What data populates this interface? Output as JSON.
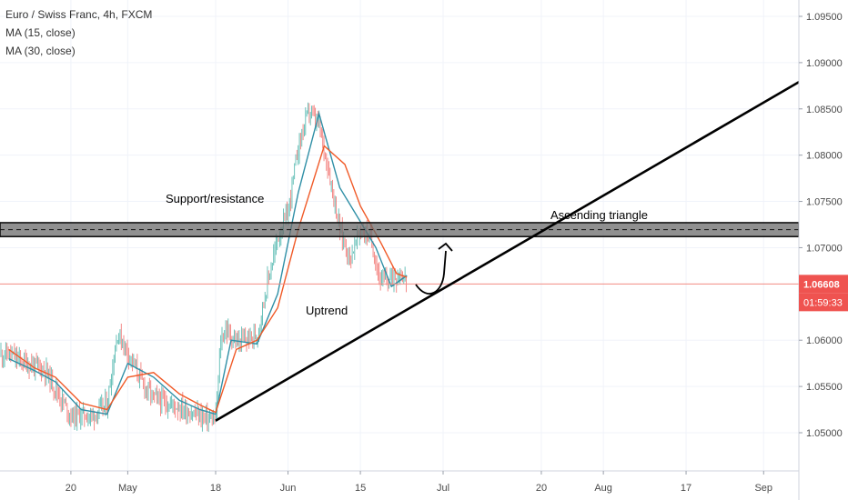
{
  "chart_data": {
    "type": "candlestick",
    "title": "Euro / Swiss Franc, 4h, FXCM",
    "indicators": [
      {
        "name": "MA (15, close)",
        "color": "#2f8fa6"
      },
      {
        "name": "MA (30, close)",
        "color": "#f05a28"
      }
    ],
    "ylim": [
      1.0468,
      1.0972
    ],
    "y_ticks": [
      "1.09500",
      "1.09000",
      "1.08500",
      "1.08000",
      "1.07500",
      "1.07000",
      "1.06000",
      "1.05500",
      "1.05000"
    ],
    "x_ticks": [
      "20",
      "May",
      "18",
      "Jun",
      "15",
      "Jul",
      "20",
      "Aug",
      "17",
      "Sep"
    ],
    "last_price": {
      "value": "1.06608",
      "countdown": "01:59:33"
    },
    "colors": {
      "up": "#26a69a",
      "down": "#ef5350",
      "price_line": "#f28b82",
      "band": "#6b6b6b"
    },
    "price_path": [
      [
        "Apr 08",
        1.0585
      ],
      [
        "Apr 10",
        1.0578
      ],
      [
        "Apr 13",
        1.0572
      ],
      [
        "Apr 15",
        1.0568
      ],
      [
        "Apr 17",
        1.0548
      ],
      [
        "Apr 20",
        1.0518
      ],
      [
        "Apr 22",
        1.052
      ],
      [
        "Apr 24",
        1.0518
      ],
      [
        "Apr 27",
        1.053
      ],
      [
        "Apr 29",
        1.0608
      ],
      [
        "May 01",
        1.0588
      ],
      [
        "May 04",
        1.0552
      ],
      [
        "May 06",
        1.0538
      ],
      [
        "May 08",
        1.0533
      ],
      [
        "May 11",
        1.0528
      ],
      [
        "May 13",
        1.0522
      ],
      [
        "May 15",
        1.0518
      ],
      [
        "May 18",
        1.0513
      ],
      [
        "May 19",
        1.06
      ],
      [
        "May 20",
        1.0612
      ],
      [
        "May 22",
        1.0597
      ],
      [
        "May 26",
        1.0605
      ],
      [
        "May 28",
        1.0662
      ],
      [
        "May 30",
        1.071
      ],
      [
        "Jun 01",
        1.0738
      ],
      [
        "Jun 03",
        1.081
      ],
      [
        "Jun 05",
        1.0848
      ],
      [
        "Jun 07",
        1.0832
      ],
      [
        "Jun 09",
        1.078
      ],
      [
        "Jun 11",
        1.072
      ],
      [
        "Jun 13",
        1.0688
      ],
      [
        "Jun 15",
        1.072
      ],
      [
        "Jun 17",
        1.071
      ],
      [
        "Jun 19",
        1.0662
      ],
      [
        "Jun 21",
        1.0668
      ],
      [
        "Jun 23",
        1.0672
      ],
      [
        "Jun 24",
        1.0661
      ]
    ],
    "ma15_path": [
      [
        "Apr 08",
        1.058
      ],
      [
        "Apr 13",
        1.0567
      ],
      [
        "Apr 17",
        1.0555
      ],
      [
        "Apr 22",
        1.0525
      ],
      [
        "Apr 27",
        1.052
      ],
      [
        "May 01",
        1.0575
      ],
      [
        "May 06",
        1.056
      ],
      [
        "May 11",
        1.0535
      ],
      [
        "May 15",
        1.0525
      ],
      [
        "May 18",
        1.052
      ],
      [
        "May 21",
        1.06
      ],
      [
        "May 26",
        1.0596
      ],
      [
        "May 30",
        1.065
      ],
      [
        "Jun 03",
        1.076
      ],
      [
        "Jun 07",
        1.0845
      ],
      [
        "Jun 11",
        1.0765
      ],
      [
        "Jun 15",
        1.0728
      ],
      [
        "Jun 18",
        1.07
      ],
      [
        "Jun 21",
        1.0658
      ],
      [
        "Jun 24",
        1.067
      ]
    ],
    "ma30_path": [
      [
        "Apr 08",
        1.059
      ],
      [
        "Apr 13",
        1.057
      ],
      [
        "Apr 17",
        1.056
      ],
      [
        "Apr 22",
        1.0532
      ],
      [
        "Apr 27",
        1.0525
      ],
      [
        "May 01",
        1.056
      ],
      [
        "May 06",
        1.0565
      ],
      [
        "May 11",
        1.0542
      ],
      [
        "May 15",
        1.053
      ],
      [
        "May 18",
        1.0522
      ],
      [
        "May 22",
        1.059
      ],
      [
        "May 26",
        1.06
      ],
      [
        "May 30",
        1.0635
      ],
      [
        "Jun 03",
        1.072
      ],
      [
        "Jun 08",
        1.081
      ],
      [
        "Jun 12",
        1.079
      ],
      [
        "Jun 15",
        1.0745
      ],
      [
        "Jun 19",
        1.0705
      ],
      [
        "Jun 22",
        1.0672
      ],
      [
        "Jun 24",
        1.0668
      ]
    ],
    "annotations": [
      {
        "name": "support-resistance-band",
        "kind": "band",
        "y": [
          1.0712,
          1.0727
        ],
        "x": [
          "Apr 05",
          "Sep 22"
        ],
        "label": "Support/resistance"
      },
      {
        "name": "ascending-triangle-label",
        "kind": "text",
        "text": "Ascending triangle"
      },
      {
        "name": "uptrend-line",
        "kind": "line",
        "from": [
          "May 18",
          1.0513
        ],
        "to": [
          "Sep 22",
          1.0925
        ]
      },
      {
        "name": "uptrend-label",
        "kind": "text",
        "text": "Uptrend"
      },
      {
        "name": "projection-arrow",
        "kind": "arrow"
      }
    ]
  }
}
